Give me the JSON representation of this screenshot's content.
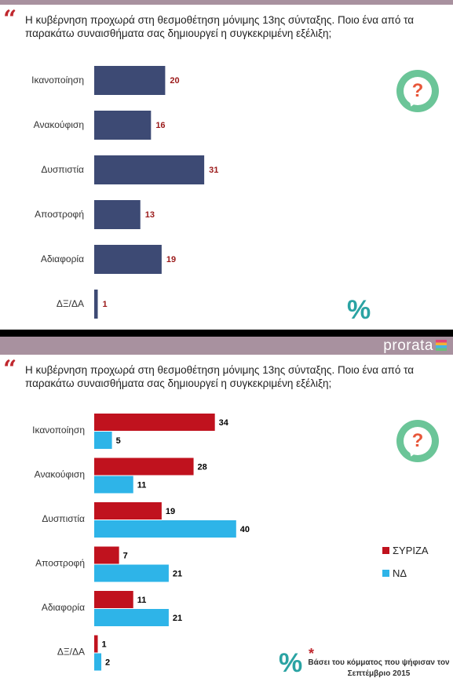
{
  "brand": {
    "name": "prorata"
  },
  "question": "Η κυβέρνηση προχωρά στη θεσμοθέτηση μόνιμης 13ης σύνταξης. Ποιο ένα από τα παρακάτω συναισθήματα σας δημιουργεί η συγκεκριμένη εξέλιξη;",
  "quote_mark": "“",
  "badge_symbol": "?",
  "percent_symbol": "%",
  "footnote": {
    "star": "*",
    "text": "Βάσει του κόμματος που ψήφισαν τον Σεπτέμβριο 2015"
  },
  "colors": {
    "total": "#3d4a74",
    "syriza": "#c0121e",
    "nd": "#2eb4e8",
    "total_label": "#9b1a1a",
    "label": "#000000"
  },
  "chart_data": [
    {
      "type": "bar",
      "orientation": "horizontal",
      "categories": [
        "Ικανοποίηση",
        "Ανακούφιση",
        "Δυσπιστία",
        "Αποστροφή",
        "Αδιαφορία",
        "ΔΞ/ΔΑ"
      ],
      "series": [
        {
          "values": [
            20,
            16,
            31,
            13,
            19,
            1
          ]
        }
      ],
      "xlim": [
        0,
        40
      ],
      "grid": false,
      "data_labels": true
    },
    {
      "type": "bar",
      "orientation": "horizontal",
      "categories": [
        "Ικανοποίηση",
        "Ανακούφιση",
        "Δυσπιστία",
        "Αποστροφή",
        "Αδιαφορία",
        "ΔΞ/ΔΑ"
      ],
      "series": [
        {
          "name": "ΣΥΡΙΖΑ",
          "values": [
            34,
            28,
            19,
            7,
            11,
            1
          ]
        },
        {
          "name": "ΝΔ",
          "values": [
            5,
            11,
            40,
            21,
            21,
            2
          ]
        }
      ],
      "xlim": [
        0,
        40
      ],
      "grid": false,
      "legend": "right",
      "data_labels": true
    }
  ]
}
